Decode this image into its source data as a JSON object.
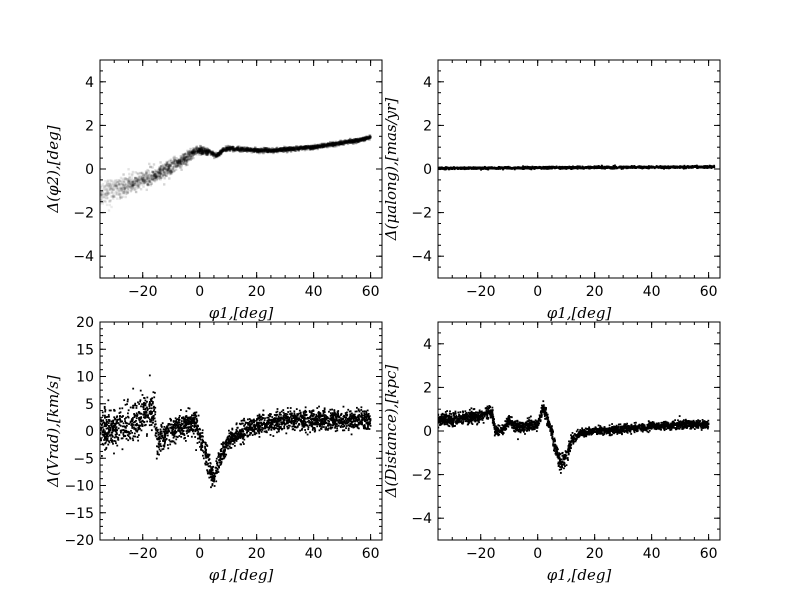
{
  "chart_data": [
    {
      "type": "scatter",
      "panel": "top-left",
      "xlabel": "$\\phi_1,[deg]$",
      "ylabel": "$\\Delta(\\phi_2),[deg]$",
      "xlabel_text": "φ1,[deg]",
      "ylabel_text": "Δ(φ2),[deg]",
      "xlim": [
        -35,
        64
      ],
      "ylim": [
        -5,
        5
      ],
      "xticks": [
        -20,
        0,
        20,
        40,
        60
      ],
      "yticks": [
        -4,
        -2,
        0,
        2,
        4
      ],
      "xtick_labels": [
        "−20",
        "0",
        "20",
        "40",
        "60"
      ],
      "ytick_labels": [
        "−4",
        "−2",
        "0",
        "2",
        "4"
      ],
      "style": "grayscale density",
      "series": [
        {
          "x": [
            -35,
            -30,
            -25,
            -20,
            -15,
            -10,
            -5,
            -2,
            0,
            2,
            4,
            6,
            8,
            10,
            15,
            20,
            25,
            30,
            35,
            40,
            45,
            50,
            55,
            60
          ],
          "y": [
            -1.1,
            -0.95,
            -0.75,
            -0.5,
            -0.25,
            0.05,
            0.45,
            0.8,
            0.85,
            0.8,
            0.75,
            0.6,
            0.85,
            0.95,
            0.9,
            0.85,
            0.85,
            0.9,
            0.95,
            1.0,
            1.1,
            1.2,
            1.3,
            1.45
          ],
          "spread": [
            0.45,
            0.45,
            0.4,
            0.35,
            0.3,
            0.3,
            0.25,
            0.18,
            0.15,
            0.12,
            0.1,
            0.08,
            0.08,
            0.08,
            0.07,
            0.07,
            0.07,
            0.07,
            0.07,
            0.07,
            0.07,
            0.07,
            0.07,
            0.07
          ]
        }
      ]
    },
    {
      "type": "scatter",
      "panel": "top-right",
      "xlabel": "$\\phi_1,[deg]$",
      "ylabel": "$\\Delta(\\mu_{along}),[mas/yr]$",
      "xlabel_text": "φ1,[deg]",
      "ylabel_text": "Δ(μalong),[mas/yr]",
      "xlim": [
        -35,
        64
      ],
      "ylim": [
        -5,
        5
      ],
      "xticks": [
        -20,
        0,
        20,
        40,
        60
      ],
      "yticks": [
        -4,
        -2,
        0,
        2,
        4
      ],
      "xtick_labels": [
        "−20",
        "0",
        "20",
        "40",
        "60"
      ],
      "ytick_labels": [
        "−4",
        "−2",
        "0",
        "2",
        "4"
      ],
      "series": [
        {
          "x": [
            -35,
            -20,
            0,
            20,
            40,
            62
          ],
          "y": [
            0.03,
            0.04,
            0.05,
            0.07,
            0.08,
            0.1
          ],
          "spread": [
            0.04,
            0.04,
            0.04,
            0.04,
            0.04,
            0.04
          ]
        }
      ]
    },
    {
      "type": "scatter",
      "panel": "bottom-left",
      "xlabel": "$\\phi_1,[deg]$",
      "ylabel": "$\\Delta(V_{rad}),[km/s]$",
      "xlabel_text": "φ1,[deg]",
      "ylabel_text": "Δ(Vrad),[km/s]",
      "xlim": [
        -35,
        64
      ],
      "ylim": [
        -20,
        20
      ],
      "xticks": [
        -20,
        0,
        20,
        40,
        60
      ],
      "yticks": [
        -20,
        -15,
        -10,
        -5,
        0,
        5,
        10,
        15,
        20
      ],
      "xtick_labels": [
        "−20",
        "0",
        "20",
        "40",
        "60"
      ],
      "ytick_labels": [
        "−20",
        "−15",
        "−10",
        "−5",
        "0",
        "5",
        "10",
        "15",
        "20"
      ],
      "series": [
        {
          "x": [
            -35,
            -30,
            -25,
            -20,
            -16,
            -15,
            -12,
            -8,
            -4,
            -2,
            0,
            2,
            4,
            5,
            6,
            8,
            10,
            15,
            20,
            30,
            40,
            50,
            60
          ],
          "y": [
            0,
            0.5,
            1.5,
            2.5,
            4.5,
            -2,
            -0.5,
            0.5,
            1.5,
            1.5,
            -1,
            -4,
            -8,
            -8.5,
            -7,
            -4,
            -2,
            0,
            1,
            2,
            2,
            2,
            2
          ],
          "spread": [
            3,
            3,
            3,
            3,
            3,
            2,
            2,
            2,
            2,
            2,
            2,
            2,
            1.5,
            1.5,
            1.5,
            1.5,
            1.5,
            1.5,
            1.5,
            1.5,
            1.5,
            1.5,
            1.5
          ]
        }
      ]
    },
    {
      "type": "scatter",
      "panel": "bottom-right",
      "xlabel": "$\\phi_1,[deg]$",
      "ylabel": "$\\Delta(Distance),[kpc]$",
      "xlabel_text": "φ1,[deg]",
      "ylabel_text": "Δ(Distance),[kpc]",
      "xlim": [
        -35,
        64
      ],
      "ylim": [
        -5,
        5
      ],
      "xticks": [
        -20,
        0,
        20,
        40,
        60
      ],
      "yticks": [
        -4,
        -2,
        0,
        2,
        4
      ],
      "xtick_labels": [
        "−20",
        "0",
        "20",
        "40",
        "60"
      ],
      "ytick_labels": [
        "−4",
        "−2",
        "0",
        "2",
        "4"
      ],
      "series": [
        {
          "x": [
            -35,
            -30,
            -25,
            -20,
            -16,
            -15,
            -12,
            -10,
            -8,
            -5,
            -2,
            0,
            2,
            4,
            5,
            6,
            8,
            10,
            12,
            15,
            20,
            30,
            40,
            50,
            60
          ],
          "y": [
            0.5,
            0.5,
            0.6,
            0.7,
            0.9,
            0.0,
            0.1,
            0.5,
            0.2,
            0.2,
            0.3,
            0.3,
            1.1,
            0.3,
            -0.1,
            -0.7,
            -1.5,
            -1.2,
            -0.4,
            -0.1,
            0.0,
            0.1,
            0.2,
            0.3,
            0.3
          ],
          "spread": [
            0.25,
            0.25,
            0.25,
            0.25,
            0.25,
            0.2,
            0.2,
            0.2,
            0.2,
            0.2,
            0.2,
            0.2,
            0.25,
            0.2,
            0.25,
            0.3,
            0.35,
            0.3,
            0.2,
            0.15,
            0.15,
            0.15,
            0.15,
            0.15,
            0.15
          ]
        }
      ]
    }
  ]
}
